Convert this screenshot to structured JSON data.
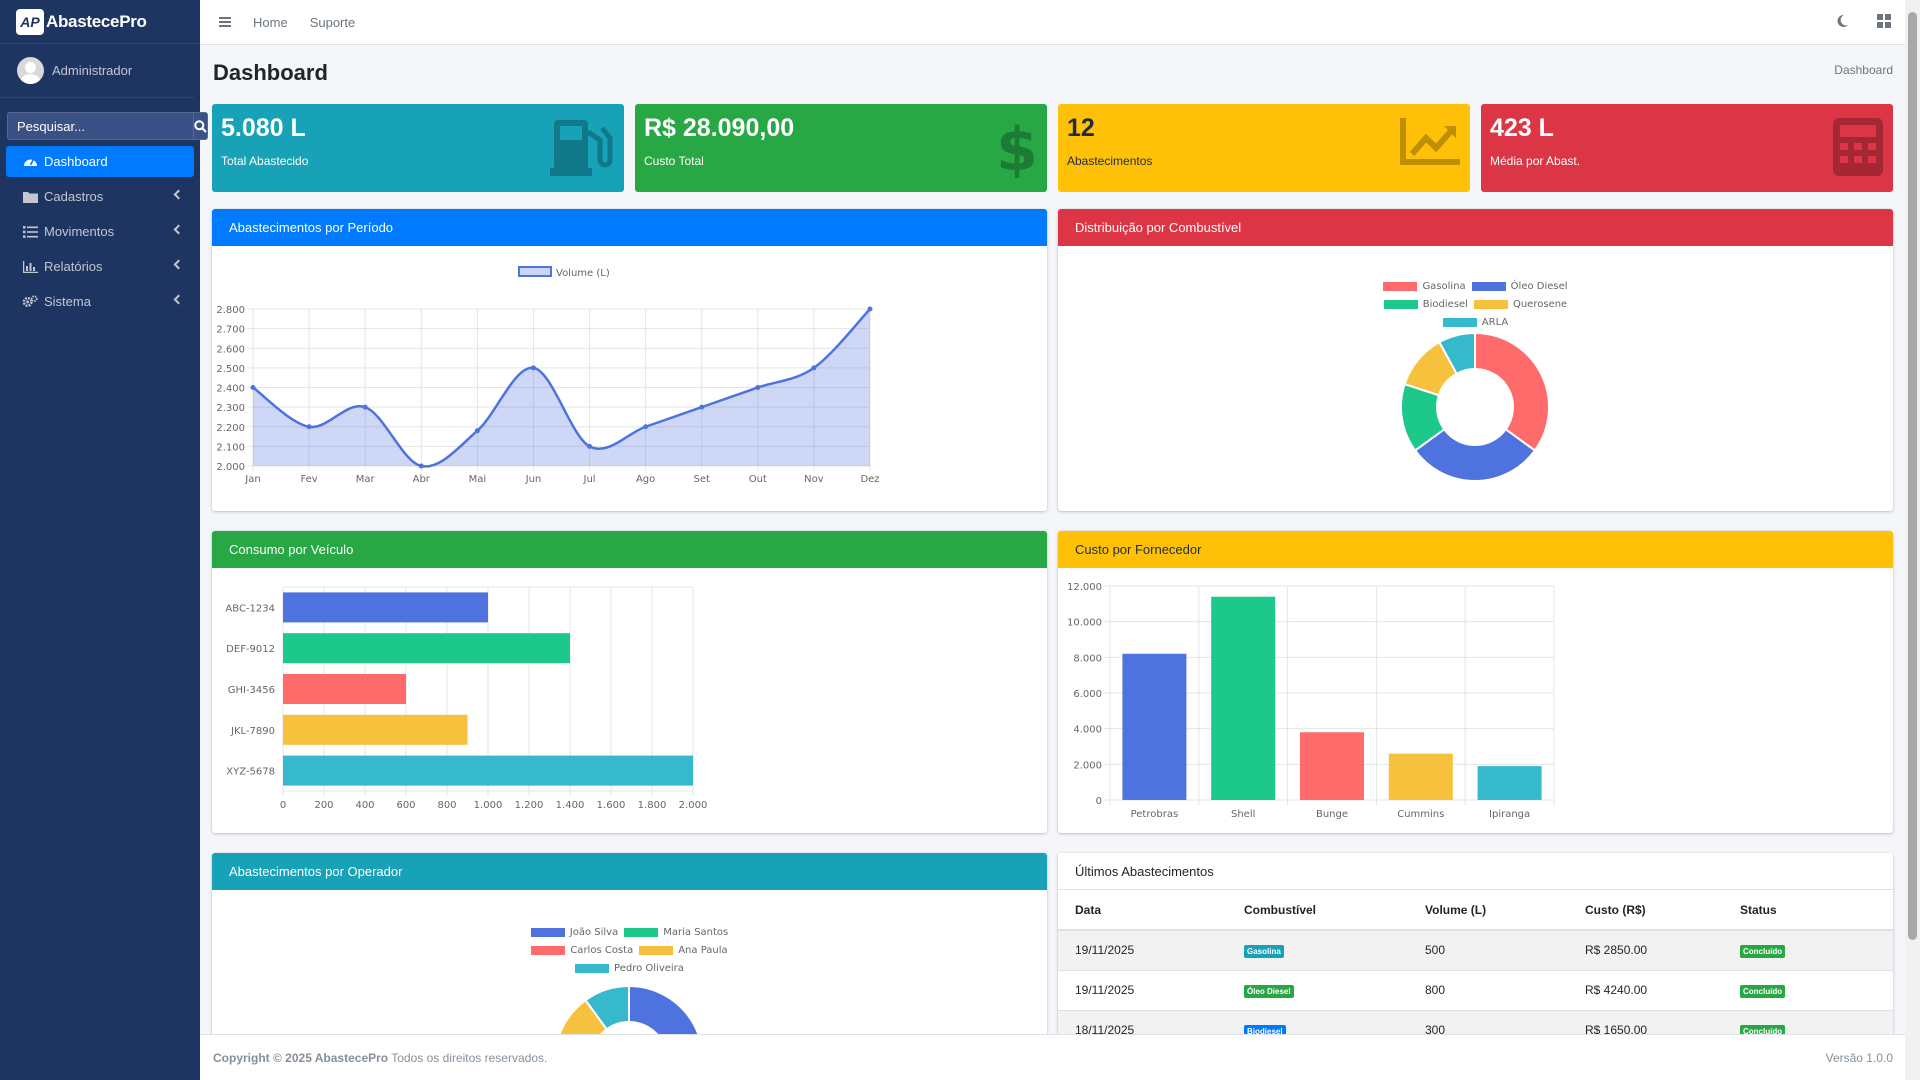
{
  "app": {
    "brand_initials": "AP",
    "brand_name": "AbastecePro"
  },
  "user": {
    "name": "Administrador"
  },
  "search": {
    "placeholder": "Pesquisar..."
  },
  "sidebar": {
    "items": [
      {
        "label": "Dashboard",
        "icon": "dashboard-icon",
        "active": true
      },
      {
        "label": "Cadastros",
        "icon": "folder-icon"
      },
      {
        "label": "Movimentos",
        "icon": "list-icon"
      },
      {
        "label": "Relatórios",
        "icon": "chart-icon"
      },
      {
        "label": "Sistema",
        "icon": "cogs-icon"
      }
    ]
  },
  "topbar": {
    "home": "Home",
    "suporte": "Suporte"
  },
  "page": {
    "title": "Dashboard",
    "breadcrumb": "Dashboard"
  },
  "kpis": [
    {
      "value": "5.080 L",
      "label": "Total Abastecido",
      "color": "#17a2b8",
      "icon": "gas-pump-icon"
    },
    {
      "value": "R$ 28.090,00",
      "label": "Custo Total",
      "color": "#28a745",
      "icon": "dollar-icon"
    },
    {
      "value": "12",
      "label": "Abastecimentos",
      "color": "#ffc107",
      "icon": "chart-line-icon"
    },
    {
      "value": "423 L",
      "label": "Média por Abast.",
      "color": "#dc3545",
      "icon": "calculator-icon"
    }
  ],
  "cards": {
    "periodo": {
      "title": "Abastecimentos por Período",
      "color": "#007bff"
    },
    "combustivel": {
      "title": "Distribuição por Combustível",
      "color": "#dc3545"
    },
    "veiculo": {
      "title": "Consumo por Veículo",
      "color": "#28a745"
    },
    "fornecedor": {
      "title": "Custo por Fornecedor",
      "color": "#ffc107"
    },
    "operador": {
      "title": "Abastecimentos por Operador",
      "color": "#17a2b8"
    },
    "ultimos": {
      "title": "Últimos Abastecimentos"
    }
  },
  "chart_data": [
    {
      "type": "line",
      "series": [
        {
          "name": "Volume (L)",
          "values": [
            2400,
            2200,
            2300,
            2000,
            2180,
            2500,
            2100,
            2200,
            2300,
            2400,
            2500,
            2800
          ]
        }
      ],
      "categories": [
        "Jan",
        "Fev",
        "Mar",
        "Abr",
        "Mai",
        "Jun",
        "Jul",
        "Ago",
        "Set",
        "Out",
        "Nov",
        "Dez"
      ],
      "ylim": [
        2000,
        2800
      ],
      "yticks": [
        "2.000",
        "2.100",
        "2.200",
        "2.300",
        "2.400",
        "2.500",
        "2.600",
        "2.700",
        "2.800"
      ],
      "fill": true,
      "color": "#4e73df"
    },
    {
      "type": "pie",
      "donut": true,
      "categories": [
        "Gasolina",
        "Óleo Diesel",
        "Biodiesel",
        "Querosene",
        "ARLA"
      ],
      "values": [
        35,
        30,
        15,
        12,
        8
      ],
      "colors": [
        "#ff6b6b",
        "#4e73df",
        "#1cc88a",
        "#f6c23e",
        "#36b9cc"
      ]
    },
    {
      "type": "bar",
      "orientation": "horizontal",
      "categories": [
        "ABC-1234",
        "DEF-9012",
        "GHI-3456",
        "JKL-7890",
        "XYZ-5678"
      ],
      "values": [
        1000,
        1400,
        600,
        900,
        2000
      ],
      "colors": [
        "#4e73df",
        "#1cc88a",
        "#ff6b6b",
        "#f6c23e",
        "#36b9cc"
      ],
      "xlim": [
        0,
        2000
      ],
      "xticks": [
        "0",
        "200",
        "400",
        "600",
        "800",
        "1.000",
        "1.200",
        "1.400",
        "1.600",
        "1.800",
        "2.000"
      ]
    },
    {
      "type": "bar",
      "categories": [
        "Petrobras",
        "Shell",
        "Bunge",
        "Cummins",
        "Ipiranga"
      ],
      "values": [
        8200,
        11400,
        3800,
        2600,
        1900
      ],
      "colors": [
        "#4e73df",
        "#1cc88a",
        "#ff6b6b",
        "#f6c23e",
        "#36b9cc"
      ],
      "ylim": [
        0,
        12000
      ],
      "yticks": [
        "0",
        "2.000",
        "4.000",
        "6.000",
        "8.000",
        "10.000",
        "12.000"
      ]
    },
    {
      "type": "pie",
      "donut": true,
      "categories": [
        "João Silva",
        "Maria Santos",
        "Carlos Costa",
        "Ana Paula",
        "Pedro Oliveira"
      ],
      "values": [
        25,
        20,
        22,
        23,
        10
      ],
      "colors": [
        "#4e73df",
        "#1cc88a",
        "#ff6b6b",
        "#f6c23e",
        "#36b9cc"
      ]
    }
  ],
  "table": {
    "headers": [
      "Data",
      "Combustível",
      "Volume (L)",
      "Custo (R$)",
      "Status"
    ],
    "rows": [
      {
        "data": "19/11/2025",
        "combustivel": "Gasolina",
        "combustivel_color": "#17a2b8",
        "volume": "500",
        "custo": "R$ 2850.00",
        "status": "Concluído"
      },
      {
        "data": "19/11/2025",
        "combustivel": "Óleo Diesel",
        "combustivel_color": "#28a745",
        "volume": "800",
        "custo": "R$ 4240.00",
        "status": "Concluído"
      },
      {
        "data": "18/11/2025",
        "combustivel": "Biodiesel",
        "combustivel_color": "#007bff",
        "volume": "300",
        "custo": "R$ 1650.00",
        "status": "Concluído"
      }
    ]
  },
  "footer": {
    "copyright": "Copyright © 2025 AbastecePro",
    "rights": "Todos os direitos reservados.",
    "version": "Versão 1.0.0"
  }
}
